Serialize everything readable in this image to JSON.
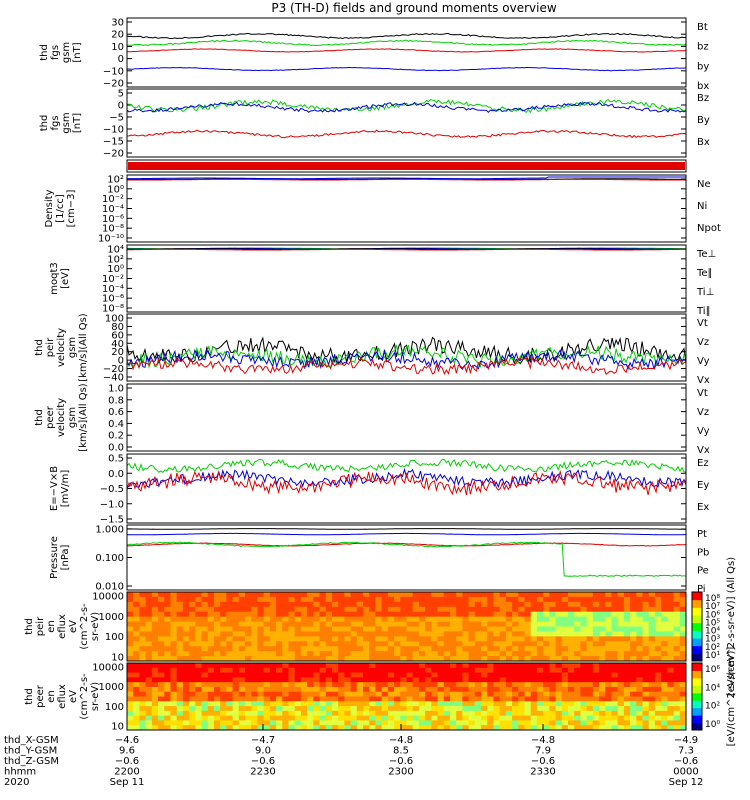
{
  "title": "P3 (TH-D) fields and ground moments overview",
  "colors": {
    "black": "#000000",
    "red": "#e00000",
    "green": "#00d000",
    "blue": "#0000e0"
  },
  "chart_data": [
    {
      "id": "fgs",
      "type": "line",
      "ylabel": [
        "thd",
        "fgs",
        "gsm",
        "[nT]"
      ],
      "ylim": [
        -22,
        30
      ],
      "yticks": [
        "30",
        "20",
        "10",
        "0",
        "−10",
        "−20"
      ],
      "legend": [
        {
          "name": "Bt",
          "color": "black"
        },
        {
          "name": "bz",
          "color": "red"
        },
        {
          "name": "by",
          "color": "green"
        },
        {
          "name": "bx",
          "color": "blue"
        }
      ]
    },
    {
      "id": "fgs_edp",
      "type": "line",
      "ylabel": [
        "thd",
        "fgs",
        "gsm",
        "[nT]"
      ],
      "ylim": [
        -22,
        6
      ],
      "yticks": [
        "5",
        "0",
        "−5",
        "−10",
        "−15",
        "−20"
      ],
      "legend": [
        {
          "name": "Bz",
          "color": "red"
        },
        {
          "name": "By",
          "color": "green"
        },
        {
          "name": "Bx",
          "color": "blue"
        }
      ]
    },
    {
      "id": "density",
      "type": "line",
      "ylabel": [
        "Density",
        "[1/cc]",
        "[cm−3]"
      ],
      "yscale": "log",
      "yticks": [
        "10²",
        "10⁰",
        "10⁻²",
        "10⁻⁴",
        "10⁻⁶",
        "10⁻⁸",
        "10⁻¹⁰"
      ],
      "legend": [
        {
          "name": "Ne",
          "color": "red"
        },
        {
          "name": "Ni",
          "color": "black"
        },
        {
          "name": "Npot",
          "color": "blue"
        }
      ]
    },
    {
      "id": "temperature",
      "type": "line",
      "ylabel": [
        "moqt3",
        "[eV]"
      ],
      "yscale": "log",
      "yticks": [
        "10⁴",
        "10²",
        "10⁰",
        "10⁻²",
        "10⁻⁴",
        "10⁻⁶",
        "10⁻⁸"
      ],
      "legend": [
        {
          "name": "Te⊥",
          "color": "red"
        },
        {
          "name": "Te∥",
          "color": "black"
        },
        {
          "name": "Ti⊥",
          "color": "blue"
        },
        {
          "name": "Ti∥",
          "color": "green"
        }
      ]
    },
    {
      "id": "peir_velocity",
      "type": "line",
      "ylabel": [
        "thd",
        "peir",
        "velocity",
        "gsm",
        "[km/s](All Qs)"
      ],
      "ylim": [
        -40,
        100
      ],
      "yticks": [
        "100",
        "80",
        "60",
        "40",
        "20",
        "0",
        "−20",
        "−40"
      ],
      "legend": [
        {
          "name": "Vt",
          "color": "black"
        },
        {
          "name": "Vz",
          "color": "red"
        },
        {
          "name": "Vy",
          "color": "green"
        },
        {
          "name": "Vx",
          "color": "blue"
        }
      ]
    },
    {
      "id": "peer_velocity",
      "type": "line",
      "ylabel": [
        "thd",
        "peer",
        "velocity",
        "gsm",
        "[km/s](All Qs)"
      ],
      "ylim": [
        0,
        1
      ],
      "yticks": [
        "1.0",
        "0.8",
        "0.6",
        "0.4",
        "0.2",
        "0.0"
      ],
      "legend": [
        {
          "name": "Vt",
          "color": "black"
        },
        {
          "name": "Vz",
          "color": "red"
        },
        {
          "name": "Vy",
          "color": "green"
        },
        {
          "name": "Vx",
          "color": "blue"
        }
      ]
    },
    {
      "id": "efield",
      "type": "line",
      "ylabel": [
        "E=−V×B",
        "[mV/m]"
      ],
      "ylim": [
        -1.5,
        0.5
      ],
      "yticks": [
        "0.5",
        "0.0",
        "−0.5",
        "−1.0",
        "−1.5"
      ],
      "legend": [
        {
          "name": "Ez",
          "color": "red"
        },
        {
          "name": "Ey",
          "color": "green"
        },
        {
          "name": "Ex",
          "color": "blue"
        }
      ]
    },
    {
      "id": "pressure",
      "type": "line",
      "ylabel": [
        "Pressure",
        "[nPa]"
      ],
      "yscale": "log",
      "yticks": [
        "1.000",
        "0.100",
        "0.010"
      ],
      "legend": [
        {
          "name": "Pt",
          "color": "black"
        },
        {
          "name": "Pb",
          "color": "red"
        },
        {
          "name": "Pe",
          "color": "green"
        },
        {
          "name": "Pi",
          "color": "blue"
        }
      ]
    },
    {
      "id": "peir_spectrogram",
      "type": "heatmap",
      "ylabel": [
        "thd",
        "peir",
        "en",
        "eflux",
        "eV",
        "(cm^2-s-",
        "sr-eV)"
      ],
      "yscale": "log",
      "yticks": [
        "10000",
        "1000",
        "100",
        "10"
      ],
      "colorbar": {
        "label": "[eV/(cm^2-s-sr-eV)] (All Qs)",
        "ticks": [
          "10⁸",
          "10⁷",
          "10⁶",
          "10⁵",
          "10⁴",
          "10³",
          "10²",
          "10¹"
        ]
      }
    },
    {
      "id": "peer_spectrogram",
      "type": "heatmap",
      "ylabel": [
        "thd",
        "peer",
        "en",
        "eflux",
        "eV",
        "(cm^2-s-",
        "sr-eV)"
      ],
      "yscale": "log",
      "yticks": [
        "10000",
        "1000",
        "100",
        "10"
      ],
      "colorbar": {
        "label": "[eV/(cm^2-s-sr-eV)]",
        "ticks": [
          "10⁶",
          "10⁴",
          "10²",
          "10⁰"
        ]
      }
    }
  ],
  "xaxis": {
    "rows": [
      {
        "label": "thd_X-GSM",
        "values": [
          "−4.6",
          "−4.7",
          "−4.8",
          "−4.8",
          "−4.9"
        ]
      },
      {
        "label": "thd_Y-GSM",
        "values": [
          "9.6",
          "9.0",
          "8.5",
          "7.9",
          "7.3"
        ]
      },
      {
        "label": "thd_Z-GSM",
        "values": [
          "−0.6",
          "−0.6",
          "−0.6",
          "−0.6",
          "−0.6"
        ]
      },
      {
        "label": "hhmm",
        "values": [
          "2200",
          "2230",
          "2300",
          "2330",
          "0000"
        ]
      },
      {
        "label": "2020",
        "values": [
          "Sep 11",
          "",
          "",
          "",
          "Sep 12"
        ]
      }
    ]
  }
}
